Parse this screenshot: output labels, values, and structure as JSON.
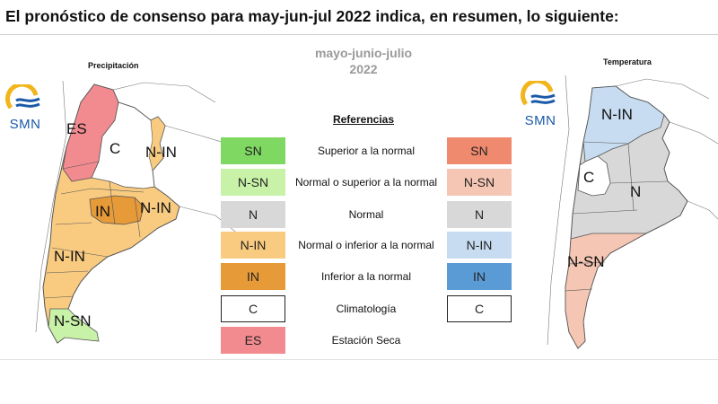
{
  "headline": "El pronóstico de consenso para  may-jun-jul 2022 indica, en resumen, lo siguiente:",
  "period": {
    "line1": "mayo-junio-julio",
    "line2": "2022"
  },
  "precipitation_map": {
    "title": "Precipitación",
    "logo_text": "SMN",
    "labels": [
      "ES",
      "C",
      "N-IN",
      "IN",
      "N-IN",
      "N-IN",
      "N-SN"
    ]
  },
  "temperature_map": {
    "title": "Temperatura",
    "logo_text": "SMN",
    "labels": [
      "N-IN",
      "C",
      "N",
      "N-SN"
    ]
  },
  "references": {
    "title": "Referencias",
    "rows": [
      {
        "left": "SN",
        "description": "Superior a la normal",
        "right": "SN",
        "left_color": "#7ed862",
        "right_color": "#ef8a6e"
      },
      {
        "left": "N-SN",
        "description": "Normal o superior a la normal",
        "right": "N-SN",
        "left_color": "#c9f2a9",
        "right_color": "#f5c6b3"
      },
      {
        "left": "N",
        "description": "Normal",
        "right": "N",
        "left_color": "#d8d8d8",
        "right_color": "#d8d8d8"
      },
      {
        "left": "N-IN",
        "description": "Normal o inferior a la normal",
        "right": "N-IN",
        "left_color": "#f9cb80",
        "right_color": "#c7dcf0"
      },
      {
        "left": "IN",
        "description": "Inferior a la normal",
        "right": "IN",
        "left_color": "#e79a38",
        "right_color": "#5b9bd5"
      },
      {
        "left": "C",
        "description": "Climatología",
        "right": "C",
        "left_color": "#ffffff",
        "right_color": "#ffffff"
      },
      {
        "left": "ES",
        "description": "Estación Seca",
        "right": "",
        "left_color": "#f28b90",
        "right_color": ""
      }
    ]
  }
}
